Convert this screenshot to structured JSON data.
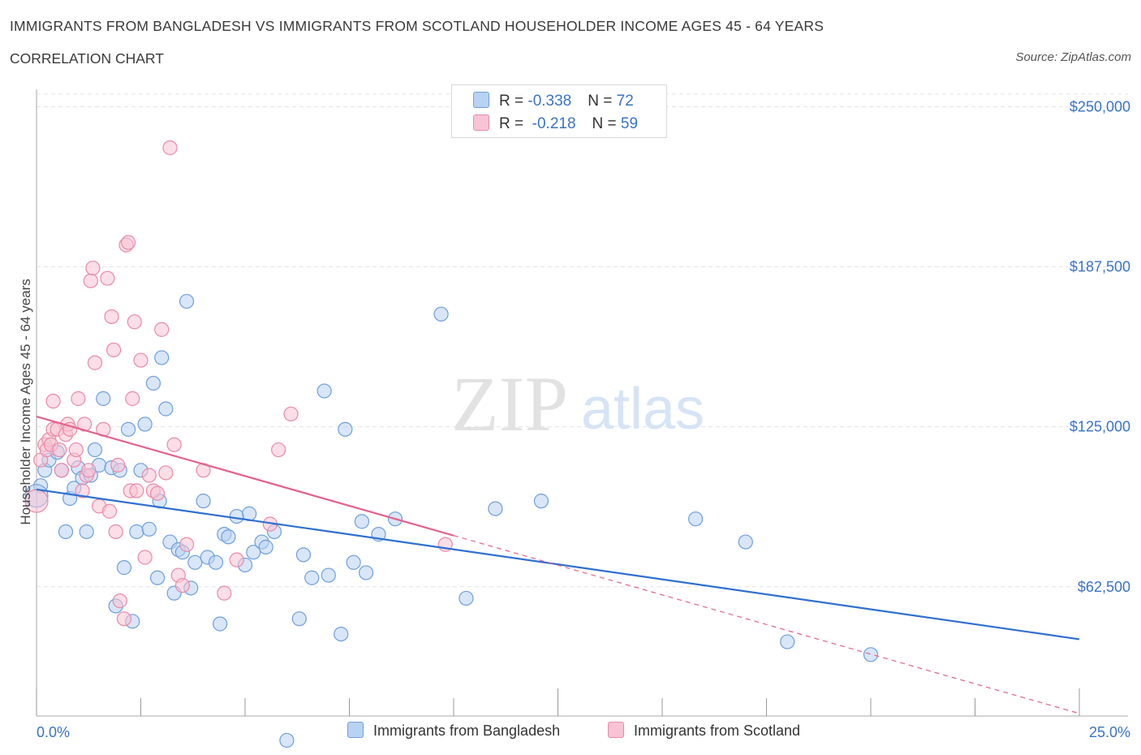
{
  "header": {
    "title": "IMMIGRANTS FROM BANGLADESH VS IMMIGRANTS FROM SCOTLAND HOUSEHOLDER INCOME AGES 45 - 64 YEARS",
    "subtitle": "CORRELATION CHART",
    "source": "Source: ZipAtlas.com"
  },
  "watermark": {
    "zip": "ZIP",
    "atlas": "atlas"
  },
  "legend": {
    "rows": [
      {
        "r_label": "R = ",
        "r_value": "-0.338",
        "n_label": "N = ",
        "n_value": "72"
      },
      {
        "r_label": "R = ",
        "r_value": " -0.218",
        "n_label": "N = ",
        "n_value": "59"
      }
    ]
  },
  "bottom_legend": [
    "Immigrants from Bangladesh",
    "Immigrants from Scotland"
  ],
  "colors": {
    "blue_fill": "#b8d2f3",
    "blue_stroke": "#6f9fdc",
    "blue_line": "#2f6fd0",
    "pink_fill": "#f8c3d4",
    "pink_stroke": "#e98aa8",
    "pink_line": "#e2628e",
    "tick": "#3b73c4",
    "grid": "#e3e3e3"
  },
  "chart_data": {
    "type": "scatter",
    "title": "IMMIGRANTS FROM BANGLADESH VS IMMIGRANTS FROM SCOTLAND HOUSEHOLDER INCOME AGES 45 - 64 YEARS",
    "xlabel": "",
    "ylabel": "Householder Income Ages 45 - 64 years",
    "x_unit": "%",
    "xlim": [
      0,
      25
    ],
    "ylim": [
      12000,
      260000
    ],
    "x_tick_labels": [
      "0.0%",
      "25.0%"
    ],
    "y_ticks": [
      62500,
      125000,
      187500,
      250000
    ],
    "y_tick_labels": [
      "$62,500",
      "$125,000",
      "$187,500",
      "$250,000"
    ],
    "grid": true,
    "legend_position": "top-center",
    "series": [
      {
        "name": "Immigrants from Bangladesh",
        "color": "#6f9fdc",
        "trend": {
          "x": [
            0,
            25
          ],
          "y": [
            100500,
            42000
          ]
        },
        "points": [
          [
            0.1,
            102000
          ],
          [
            0.2,
            108000
          ],
          [
            0.3,
            112000
          ],
          [
            0.5,
            115000
          ],
          [
            0.6,
            108000
          ],
          [
            0.7,
            84000
          ],
          [
            0.8,
            97000
          ],
          [
            0.9,
            101000
          ],
          [
            1.0,
            109000
          ],
          [
            1.1,
            105000
          ],
          [
            1.2,
            84000
          ],
          [
            1.3,
            106000
          ],
          [
            1.4,
            116000
          ],
          [
            1.5,
            110000
          ],
          [
            1.6,
            136000
          ],
          [
            1.8,
            109000
          ],
          [
            1.9,
            55000
          ],
          [
            2.0,
            108000
          ],
          [
            2.1,
            70000
          ],
          [
            2.2,
            124000
          ],
          [
            2.3,
            49000
          ],
          [
            2.4,
            84000
          ],
          [
            2.5,
            108000
          ],
          [
            2.6,
            126000
          ],
          [
            2.7,
            85000
          ],
          [
            2.8,
            142000
          ],
          [
            2.9,
            66000
          ],
          [
            2.95,
            96000
          ],
          [
            3.0,
            152000
          ],
          [
            3.1,
            132000
          ],
          [
            3.2,
            80000
          ],
          [
            3.3,
            60000
          ],
          [
            3.4,
            77000
          ],
          [
            3.5,
            76000
          ],
          [
            3.6,
            174000
          ],
          [
            3.7,
            62000
          ],
          [
            3.8,
            72000
          ],
          [
            4.0,
            96000
          ],
          [
            4.1,
            74000
          ],
          [
            4.3,
            72000
          ],
          [
            4.4,
            48000
          ],
          [
            4.5,
            83000
          ],
          [
            4.6,
            82000
          ],
          [
            4.8,
            90000
          ],
          [
            5.0,
            71000
          ],
          [
            5.1,
            91000
          ],
          [
            5.2,
            76000
          ],
          [
            5.4,
            80000
          ],
          [
            5.5,
            78000
          ],
          [
            5.7,
            84000
          ],
          [
            6.0,
            2500
          ],
          [
            6.3,
            50000
          ],
          [
            6.4,
            75000
          ],
          [
            6.6,
            66000
          ],
          [
            6.9,
            139000
          ],
          [
            7.0,
            67000
          ],
          [
            7.3,
            44000
          ],
          [
            7.4,
            124000
          ],
          [
            7.6,
            72000
          ],
          [
            7.8,
            88000
          ],
          [
            7.9,
            68000
          ],
          [
            8.2,
            83000
          ],
          [
            8.6,
            89000
          ],
          [
            9.7,
            169000
          ],
          [
            10.3,
            58000
          ],
          [
            11.0,
            93000
          ],
          [
            12.1,
            96000
          ],
          [
            15.8,
            89000
          ],
          [
            17.0,
            80000
          ],
          [
            18.0,
            41000
          ],
          [
            20.0,
            36000
          ],
          [
            0.0,
            98000
          ]
        ]
      },
      {
        "name": "Immigrants from Scotland",
        "color": "#e98aa8",
        "trend": {
          "x": [
            0,
            10
          ],
          "y": [
            129000,
            82500
          ],
          "dashed_to": [
            25,
            13000
          ]
        },
        "points": [
          [
            0.0,
            96000
          ],
          [
            0.1,
            112000
          ],
          [
            0.2,
            118000
          ],
          [
            0.25,
            116000
          ],
          [
            0.3,
            120000
          ],
          [
            0.35,
            118000
          ],
          [
            0.4,
            124000
          ],
          [
            0.4,
            135000
          ],
          [
            0.5,
            124000
          ],
          [
            0.55,
            116000
          ],
          [
            0.6,
            108000
          ],
          [
            0.7,
            122000
          ],
          [
            0.75,
            126000
          ],
          [
            0.8,
            124000
          ],
          [
            0.9,
            112000
          ],
          [
            0.95,
            116000
          ],
          [
            1.0,
            136000
          ],
          [
            1.1,
            100000
          ],
          [
            1.15,
            126000
          ],
          [
            1.2,
            106000
          ],
          [
            1.25,
            108000
          ],
          [
            1.3,
            182000
          ],
          [
            1.35,
            187000
          ],
          [
            1.4,
            150000
          ],
          [
            1.5,
            94000
          ],
          [
            1.6,
            124000
          ],
          [
            1.7,
            183000
          ],
          [
            1.75,
            92000
          ],
          [
            1.8,
            168000
          ],
          [
            1.85,
            155000
          ],
          [
            1.9,
            84000
          ],
          [
            1.95,
            110000
          ],
          [
            2.0,
            57000
          ],
          [
            2.1,
            50000
          ],
          [
            2.15,
            196000
          ],
          [
            2.2,
            197000
          ],
          [
            2.25,
            100000
          ],
          [
            2.3,
            136000
          ],
          [
            2.35,
            166000
          ],
          [
            2.4,
            100000
          ],
          [
            2.5,
            151000
          ],
          [
            2.6,
            74000
          ],
          [
            2.7,
            106000
          ],
          [
            2.8,
            100000
          ],
          [
            2.9,
            99000
          ],
          [
            3.0,
            163000
          ],
          [
            3.1,
            107000
          ],
          [
            3.2,
            234000
          ],
          [
            3.3,
            118000
          ],
          [
            3.4,
            67000
          ],
          [
            3.5,
            63000
          ],
          [
            3.6,
            79000
          ],
          [
            4.0,
            108000
          ],
          [
            4.5,
            60000
          ],
          [
            4.8,
            73000
          ],
          [
            5.6,
            87000
          ],
          [
            5.8,
            116000
          ],
          [
            6.1,
            130000
          ],
          [
            9.8,
            79000
          ]
        ]
      }
    ]
  }
}
